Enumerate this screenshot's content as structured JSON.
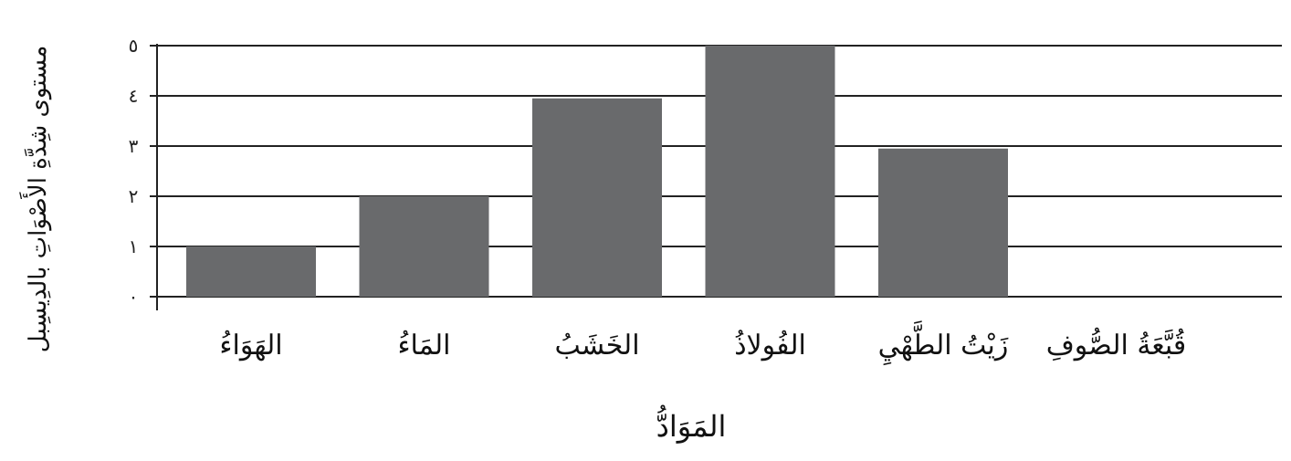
{
  "chart_data": {
    "type": "bar",
    "categories": [
      "الهَوَاءُ",
      "المَاءُ",
      "الخَشَبُ",
      "الفُولاذُ",
      "زَيْتُ الطَّهْيِ",
      "قُبَّعَةُ الصُّوفِ"
    ],
    "values": [
      1,
      2,
      3.95,
      5,
      2.95,
      0
    ],
    "ylim": [
      0,
      5
    ],
    "yticks": [
      0,
      1,
      2,
      3,
      4,
      5
    ],
    "ytick_labels": [
      "٠",
      "١",
      "٢",
      "٣",
      "٤",
      "٥"
    ],
    "xlabel": "المَوَادُّ",
    "ylabel": "مستوى شِدَّةِ الأَصْوَاتِ بالدِيسِبل",
    "grid": true,
    "bar_color": "#696a6c",
    "grid_color": "#222222"
  }
}
